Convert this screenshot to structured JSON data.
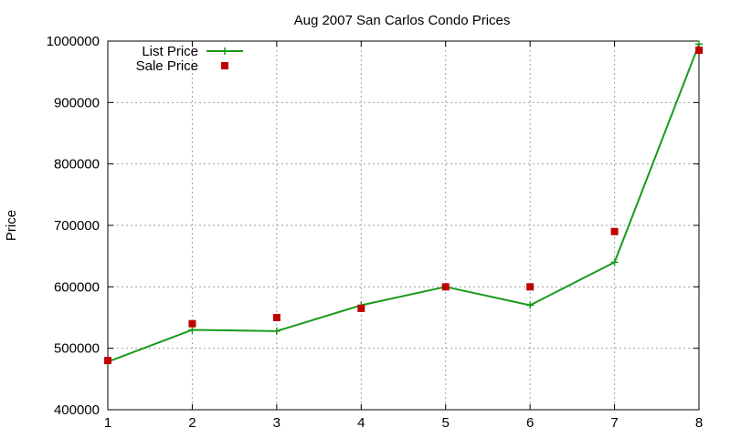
{
  "chart_data": {
    "type": "line",
    "title": "Aug 2007 San Carlos Condo Prices",
    "xlabel": "",
    "ylabel": "Price",
    "xlim": [
      1,
      8
    ],
    "ylim": [
      400000,
      1000000
    ],
    "x_ticks": [
      "1",
      "2",
      "3",
      "4",
      "5",
      "6",
      "7",
      "8"
    ],
    "y_ticks": [
      "400000",
      "500000",
      "600000",
      "700000",
      "800000",
      "900000",
      "1000000"
    ],
    "grid": true,
    "legend_position": "top-left",
    "x": [
      1,
      2,
      3,
      4,
      5,
      6,
      7,
      8
    ],
    "series": [
      {
        "name": "List Price",
        "style": "line-with-plus-markers",
        "color": "#1a9a1a",
        "values": [
          478000,
          530000,
          528000,
          570000,
          600000,
          570000,
          640000,
          995000
        ]
      },
      {
        "name": "Sale Price",
        "style": "square-markers",
        "color": "#c00000",
        "values": [
          480000,
          540000,
          550000,
          565000,
          600000,
          600000,
          690000,
          985000
        ]
      }
    ]
  }
}
